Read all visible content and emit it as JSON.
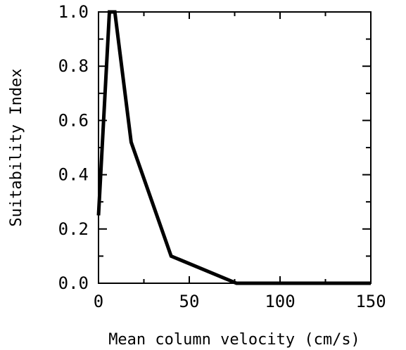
{
  "chart_data": {
    "type": "line",
    "title": "",
    "xlabel": "Mean column velocity (cm/s)",
    "ylabel": "Suitability Index",
    "xlim": [
      0,
      150
    ],
    "ylim": [
      0,
      1.0
    ],
    "x_ticks": [
      0,
      50,
      100,
      150
    ],
    "x_tick_labels": [
      "0",
      "50",
      "100",
      "150"
    ],
    "y_ticks": [
      0.0,
      0.2,
      0.4,
      0.6,
      0.8,
      1.0
    ],
    "y_tick_labels": [
      "0.0",
      "0.2",
      "0.4",
      "0.6",
      "0.8",
      "1.0"
    ],
    "grid": false,
    "legend": "none",
    "series": [
      {
        "x": [
          0,
          6,
          9,
          18,
          40,
          76,
          150
        ],
        "y": [
          0.25,
          1.0,
          1.0,
          0.52,
          0.1,
          0.0,
          0.0
        ]
      }
    ],
    "line_color": "#000000"
  }
}
